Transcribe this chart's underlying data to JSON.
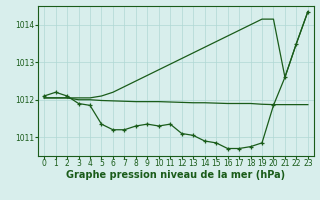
{
  "x": [
    0,
    1,
    2,
    3,
    4,
    5,
    6,
    7,
    8,
    9,
    10,
    11,
    12,
    13,
    14,
    15,
    16,
    17,
    18,
    19,
    20,
    21,
    22,
    23
  ],
  "series1_markers": [
    1012.1,
    1012.2,
    1012.1,
    1011.9,
    1011.85,
    1011.35,
    1011.2,
    1011.2,
    1011.3,
    1011.35,
    1011.3,
    1011.35,
    1011.1,
    1011.05,
    1010.9,
    1010.85,
    1010.7,
    1010.7,
    1010.75,
    1010.85,
    1011.85,
    1012.6,
    1013.5,
    1014.35
  ],
  "series2_flat": [
    1012.05,
    1012.05,
    1012.05,
    1012.0,
    1012.0,
    1011.98,
    1011.97,
    1011.96,
    1011.95,
    1011.95,
    1011.95,
    1011.94,
    1011.93,
    1011.92,
    1011.92,
    1011.91,
    1011.9,
    1011.9,
    1011.9,
    1011.88,
    1011.87,
    1011.87,
    1011.87,
    1011.87
  ],
  "series3_straight": [
    1012.05,
    1012.05,
    1012.05,
    1012.05,
    1012.05,
    1012.1,
    1012.2,
    1012.35,
    1012.5,
    1012.65,
    1012.8,
    1012.95,
    1013.1,
    1013.25,
    1013.4,
    1013.55,
    1013.7,
    1013.85,
    1014.0,
    1014.15,
    1014.15,
    1012.6,
    1013.5,
    1014.35
  ],
  "bg_color": "#d8eeec",
  "grid_color": "#b0d8d4",
  "line_color": "#1a5c1a",
  "xlabel": "Graphe pression niveau de la mer (hPa)",
  "xlim": [
    -0.5,
    23.5
  ],
  "ylim": [
    1010.5,
    1014.5
  ],
  "yticks": [
    1011,
    1012,
    1013,
    1014
  ],
  "xticks": [
    0,
    1,
    2,
    3,
    4,
    5,
    6,
    7,
    8,
    9,
    10,
    11,
    12,
    13,
    14,
    15,
    16,
    17,
    18,
    19,
    20,
    21,
    22,
    23
  ],
  "tick_fontsize": 5.5,
  "xlabel_fontsize": 7
}
